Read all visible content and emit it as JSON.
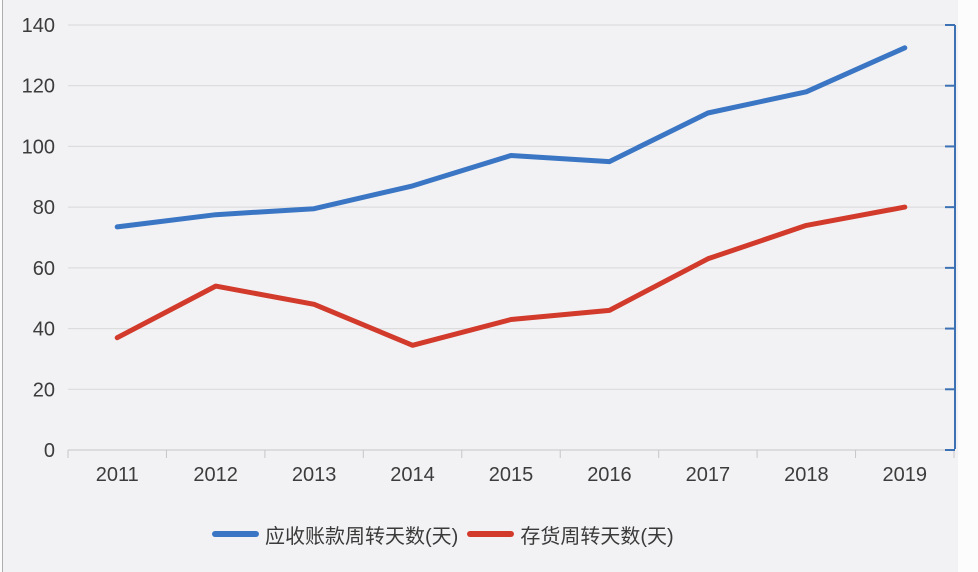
{
  "chart_data": {
    "type": "line",
    "title": "",
    "xlabel": "",
    "ylabel": "",
    "categories": [
      "2011",
      "2012",
      "2013",
      "2014",
      "2015",
      "2016",
      "2017",
      "2018",
      "2019"
    ],
    "series": [
      {
        "name": "应收账款周转天数(天)",
        "color": "#3b76c4",
        "values": [
          73.5,
          77.5,
          79.5,
          87,
          97,
          95,
          111,
          118,
          132.5
        ]
      },
      {
        "name": "存货周转天数(天)",
        "color": "#d23a2c",
        "values": [
          37,
          54,
          48,
          34.5,
          43,
          46,
          63,
          74,
          80
        ]
      }
    ],
    "ylim": [
      0,
      140
    ],
    "yticks": [
      0,
      20,
      40,
      60,
      80,
      100,
      120,
      140
    ],
    "grid": true,
    "legend_position": "bottom",
    "colors": {
      "plot_background": "#f2f2f4",
      "gridline": "#d8d8da",
      "x_axis_line": "#c6c6c8",
      "secondary_axis": "#3c72b4",
      "tick_label": "#3c3c3c"
    }
  }
}
